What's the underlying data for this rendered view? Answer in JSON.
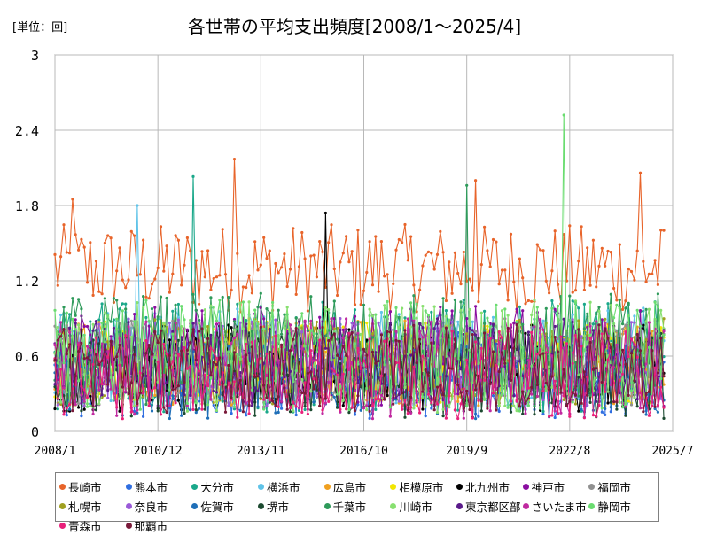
{
  "header": {
    "unit_label": "[単位：回]",
    "title": "各世帯の平均支出頻度[2008/1～2025/4]"
  },
  "chart_data": {
    "type": "line",
    "title": "各世帯の平均支出頻度[2008/1～2025/4]",
    "ylabel": "[単位：回]",
    "xlabel": "",
    "ylim": [
      0,
      3
    ],
    "y_ticks": [
      "0",
      "0.6",
      "1.2",
      "1.8",
      "2.4",
      "3"
    ],
    "x_ticks": [
      "2008/1",
      "2010/12",
      "2013/11",
      "2016/10",
      "2019/9",
      "2022/8",
      "2025/7"
    ],
    "x_range": [
      "2008/1",
      "2025/7"
    ],
    "frequency": "monthly",
    "grid": true,
    "legend_position": "bottom",
    "series": [
      {
        "name": "長崎市",
        "color": "#e8642a",
        "level": 1.3,
        "spread": 0.35
      },
      {
        "name": "熊本市",
        "color": "#2f6ee0",
        "level": 0.45,
        "spread": 0.35
      },
      {
        "name": "大分市",
        "color": "#1aa88a",
        "level": 0.6,
        "spread": 0.45
      },
      {
        "name": "横浜市",
        "color": "#5fc3e8",
        "level": 0.6,
        "spread": 0.4
      },
      {
        "name": "広島市",
        "color": "#f0a020",
        "level": 0.55,
        "spread": 0.35
      },
      {
        "name": "相模原市",
        "color": "#f2e600",
        "level": 0.55,
        "spread": 0.35
      },
      {
        "name": "北九州市",
        "color": "#000000",
        "level": 0.5,
        "spread": 0.35
      },
      {
        "name": "神戸市",
        "color": "#8a0ea0",
        "level": 0.6,
        "spread": 0.4
      },
      {
        "name": "福岡市",
        "color": "#909090",
        "level": 0.55,
        "spread": 0.35
      },
      {
        "name": "札幌市",
        "color": "#a0a020",
        "level": 0.55,
        "spread": 0.35
      },
      {
        "name": "奈良市",
        "color": "#9a5ad8",
        "level": 0.55,
        "spread": 0.35
      },
      {
        "name": "佐賀市",
        "color": "#1f6fb8",
        "level": 0.4,
        "spread": 0.3
      },
      {
        "name": "堺市",
        "color": "#1c4a30",
        "level": 0.45,
        "spread": 0.35
      },
      {
        "name": "千葉市",
        "color": "#2e9a5a",
        "level": 0.65,
        "spread": 0.45
      },
      {
        "name": "川崎市",
        "color": "#88e070",
        "level": 0.6,
        "spread": 0.45
      },
      {
        "name": "東京都区部",
        "color": "#5a1a8a",
        "level": 0.55,
        "spread": 0.35
      },
      {
        "name": "さいたま市",
        "color": "#c02aa0",
        "level": 0.5,
        "spread": 0.4
      },
      {
        "name": "静岡市",
        "color": "#6adc70",
        "level": 0.6,
        "spread": 0.45
      },
      {
        "name": "青森市",
        "color": "#e8207a",
        "level": 0.45,
        "spread": 0.35
      },
      {
        "name": "那覇市",
        "color": "#7a1a3a",
        "level": 0.5,
        "spread": 0.35
      }
    ],
    "peaks": [
      {
        "series": "静岡市",
        "x": "2022/6",
        "y": 2.52
      },
      {
        "series": "長崎市",
        "x": "2013/2",
        "y": 2.17
      },
      {
        "series": "長崎市",
        "x": "2024/8",
        "y": 2.06
      },
      {
        "series": "大分市",
        "x": "2011/12",
        "y": 2.03
      },
      {
        "series": "長崎市",
        "x": "2019/12",
        "y": 2.0
      },
      {
        "series": "千葉市",
        "x": "2019/9",
        "y": 1.96
      },
      {
        "series": "長崎市",
        "x": "2008/7",
        "y": 1.85
      },
      {
        "series": "横浜市",
        "x": "2010/5",
        "y": 1.8
      },
      {
        "series": "北九州市",
        "x": "2015/9",
        "y": 1.74
      }
    ]
  }
}
